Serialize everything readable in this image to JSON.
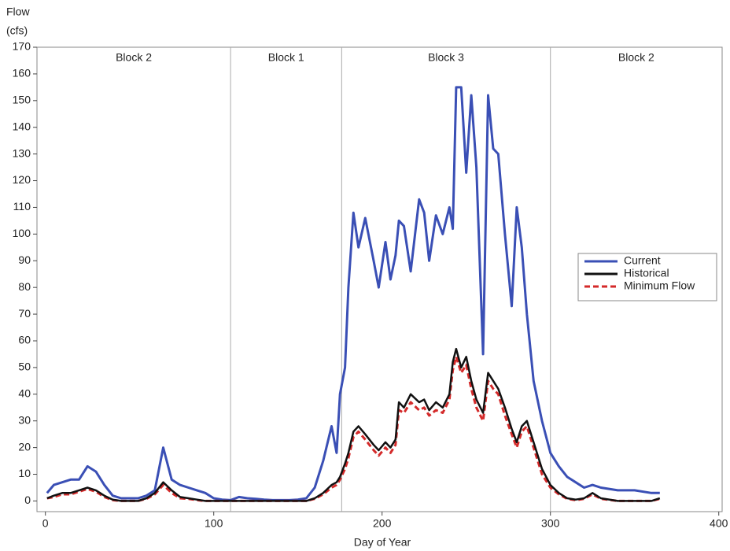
{
  "chart_data": {
    "type": "line",
    "ylabel": [
      "Flow",
      "(cfs)"
    ],
    "xlabel": "Day of Year",
    "x": [
      1,
      5,
      10,
      15,
      20,
      25,
      30,
      35,
      40,
      45,
      50,
      55,
      60,
      65,
      70,
      75,
      80,
      85,
      90,
      95,
      100,
      105,
      110,
      115,
      120,
      125,
      130,
      135,
      140,
      145,
      150,
      155,
      160,
      165,
      170,
      173,
      175,
      178,
      180,
      183,
      186,
      190,
      195,
      198,
      202,
      205,
      208,
      210,
      213,
      217,
      222,
      225,
      228,
      232,
      236,
      240,
      242,
      244,
      247,
      250,
      253,
      256,
      260,
      263,
      266,
      269,
      273,
      277,
      280,
      283,
      286,
      290,
      295,
      300,
      305,
      310,
      315,
      320,
      325,
      330,
      340,
      350,
      360,
      365
    ],
    "series": [
      {
        "name": "Current",
        "color": "#3a4fb5",
        "dash": false,
        "values": [
          3,
          6,
          7,
          8,
          8,
          13,
          11,
          6,
          2,
          1,
          1,
          1,
          2,
          4,
          20,
          8,
          6,
          5,
          4,
          3,
          1,
          0.5,
          0.3,
          1.5,
          1,
          0.8,
          0.5,
          0.3,
          0.3,
          0.3,
          0.5,
          1,
          5,
          15,
          28,
          18,
          40,
          50,
          80,
          108,
          95,
          106,
          90,
          80,
          97,
          83,
          92,
          105,
          103,
          86,
          113,
          108,
          90,
          107,
          100,
          110,
          102,
          155,
          155,
          123,
          152,
          125,
          55,
          152,
          132,
          130,
          100,
          73,
          110,
          95,
          70,
          45,
          30,
          18,
          13,
          9,
          7,
          5,
          6,
          5,
          4,
          4,
          3,
          3
        ]
      },
      {
        "name": "Historical",
        "color": "#111111",
        "dash": false,
        "values": [
          1,
          2,
          3,
          3,
          4,
          5,
          4,
          2,
          0.5,
          0,
          0,
          0,
          1,
          3,
          7,
          4,
          1.5,
          1,
          0.5,
          0,
          0,
          0,
          0,
          0,
          0,
          0,
          0,
          0,
          0,
          0,
          0,
          0,
          1,
          3,
          6,
          7,
          9,
          14,
          18,
          26,
          28,
          25,
          21,
          19,
          22,
          20,
          23,
          37,
          35,
          40,
          37,
          38,
          34,
          37,
          35,
          40,
          52,
          57,
          50,
          54,
          45,
          38,
          33,
          48,
          45,
          42,
          35,
          27,
          22,
          28,
          30,
          22,
          12,
          6,
          3,
          1,
          0.5,
          1,
          3,
          1,
          0,
          0,
          0,
          1
        ]
      },
      {
        "name": "Minimum Flow",
        "color": "#d42a2a",
        "dash": true,
        "values": [
          1,
          1.5,
          2.5,
          2.5,
          3.5,
          4.5,
          3.5,
          1.5,
          0.3,
          0,
          0,
          0,
          0.8,
          2.5,
          6,
          3,
          1,
          0.8,
          0.3,
          0,
          0,
          0,
          0,
          0,
          0,
          0,
          0,
          0,
          0,
          0,
          0,
          0,
          0.8,
          2.5,
          5,
          6,
          8,
          12,
          16,
          24,
          26,
          23,
          19,
          17,
          20,
          18,
          21,
          34,
          33,
          37,
          34,
          35,
          32,
          34,
          33,
          38,
          49,
          54,
          48,
          51,
          42,
          35,
          30,
          45,
          42,
          40,
          32,
          25,
          20,
          26,
          28,
          20,
          10,
          5,
          2.5,
          0.8,
          0.3,
          0.8,
          2.5,
          0.8,
          0,
          0,
          0,
          0.8
        ]
      }
    ],
    "xlim": [
      -5,
      402
    ],
    "ylim": [
      -4,
      170
    ],
    "xticks": [
      0,
      100,
      200,
      300,
      400
    ],
    "yticks": [
      0,
      10,
      20,
      30,
      40,
      50,
      60,
      70,
      80,
      90,
      100,
      110,
      120,
      130,
      140,
      150,
      160,
      170
    ],
    "dividers": [
      110,
      176,
      300
    ],
    "blocks": [
      "Block 2",
      "Block 1",
      "Block 3",
      "Block 2"
    ],
    "legend": "right"
  }
}
